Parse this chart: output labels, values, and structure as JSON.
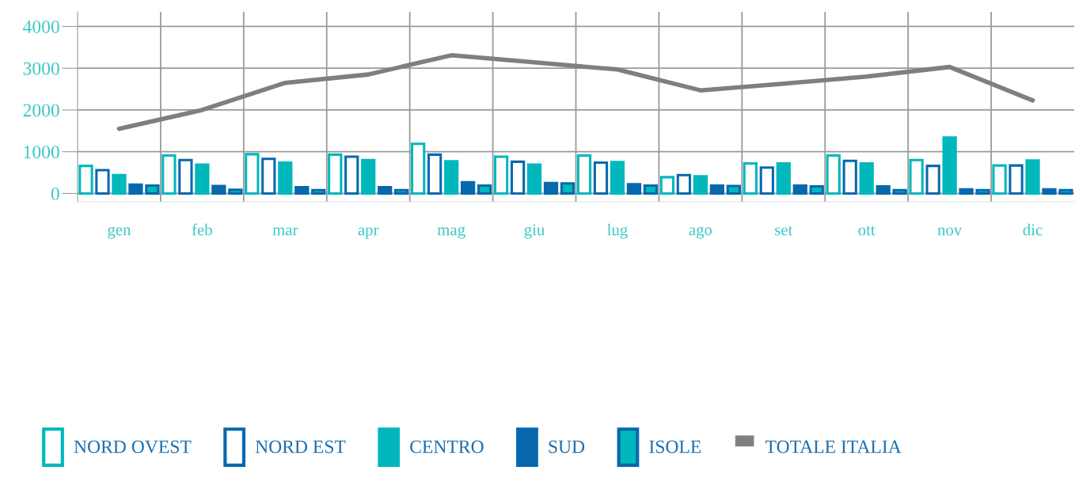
{
  "chart_data": {
    "type": "bar",
    "categories": [
      "gen",
      "feb",
      "mar",
      "apr",
      "mag",
      "giu",
      "lug",
      "ago",
      "set",
      "ott",
      "nov",
      "dic"
    ],
    "series": [
      {
        "name": "NORD OVEST",
        "color": "#00b8bc",
        "values": [
          660,
          910,
          940,
          930,
          1190,
          880,
          910,
          390,
          720,
          910,
          800,
          670
        ]
      },
      {
        "name": "NORD EST",
        "color": "#0868ae",
        "values": [
          560,
          800,
          830,
          880,
          930,
          760,
          740,
          440,
          620,
          780,
          660,
          670
        ]
      },
      {
        "name": "CENTRO",
        "color": "#00b8bc",
        "values": [
          440,
          690,
          740,
          800,
          770,
          690,
          750,
          410,
          720,
          720,
          1340,
          790
        ]
      },
      {
        "name": "SUD",
        "color": "#0868ae",
        "values": [
          210,
          180,
          150,
          150,
          270,
          250,
          220,
          190,
          190,
          170,
          100,
          100
        ]
      },
      {
        "name": "ISOLE",
        "color": "#00b8bc",
        "values": [
          190,
          90,
          80,
          80,
          190,
          240,
          190,
          180,
          170,
          80,
          80,
          80
        ]
      },
      {
        "name": "TOTALE ITALIA",
        "type": "line",
        "color": "#7f7f7f",
        "values": [
          1550,
          2000,
          2650,
          2850,
          3310,
          3140,
          2970,
          2470,
          2630,
          2800,
          3030,
          2230
        ]
      }
    ],
    "ylim": [
      -200,
      4350
    ],
    "yticks": [
      0,
      1000,
      2000,
      3000,
      4000
    ],
    "grid": true,
    "legend": "bottom left",
    "marker": "none",
    "line_style": "solid"
  }
}
